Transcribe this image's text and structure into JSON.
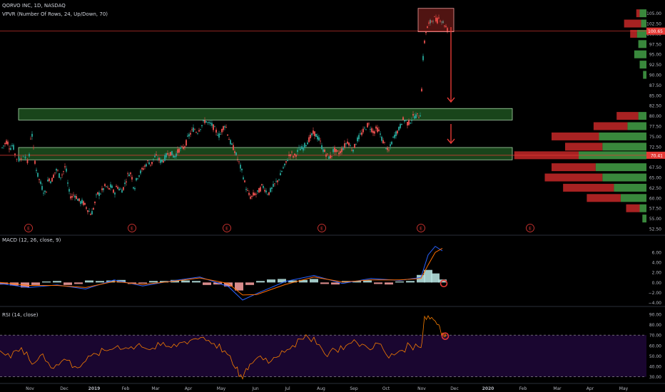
{
  "header": {
    "symbol_line": "QORVO INC, 1D, NASDAQ",
    "vpvr_line": "VPVR (Number Of Rows, 24, Up/Down, 70)"
  },
  "macd_pane": {
    "label": "MACD (12, 26, close, 9)"
  },
  "rsi_pane": {
    "label": "RSI (14, close)"
  },
  "price_badges": {
    "last": "100.65",
    "poc": "70.41"
  },
  "colors": {
    "background": "#000000",
    "candle_up": "#26a69a",
    "candle_down": "#ef5350",
    "zone_fill": "#2e7d32",
    "zone_stroke": "#a5d6a7",
    "vp_up": "#43a047",
    "vp_down": "#c62828",
    "macd_line": "#2962ff",
    "signal_line": "#ff6d00",
    "rsi_line": "#f57c00",
    "rsi_band": "#1a0630",
    "annotation": "#e53935"
  },
  "earnings_marker_label": "E",
  "chart_data": [
    {
      "type": "candlestick",
      "title": "QORVO INC, 1D, NASDAQ",
      "ylim": [
        52.5,
        106.5
      ],
      "y_ticks": [
        "105.00",
        "102.50",
        "100.00",
        "97.50",
        "95.00",
        "92.50",
        "90.00",
        "87.50",
        "85.00",
        "82.50",
        "80.00",
        "77.50",
        "75.00",
        "72.50",
        "70.00",
        "67.50",
        "65.00",
        "62.50",
        "60.00",
        "57.50",
        "55.00",
        "52.50"
      ],
      "x_ticks": [
        "Nov",
        "Dec",
        "2019",
        "Feb",
        "Mar",
        "Apr",
        "May",
        "Jun",
        "Jul",
        "Aug",
        "Sep",
        "Oct",
        "Nov",
        "Dec",
        "2020",
        "Feb",
        "Mar",
        "Apr",
        "May"
      ],
      "close_path": [
        [
          2,
          72
        ],
        [
          6,
          73
        ],
        [
          10,
          74
        ],
        [
          14,
          72
        ],
        [
          18,
          73
        ],
        [
          22,
          70
        ],
        [
          28,
          69
        ],
        [
          34,
          71
        ],
        [
          40,
          68
        ],
        [
          44,
          77
        ],
        [
          48,
          70
        ],
        [
          52,
          66
        ],
        [
          56,
          64
        ],
        [
          60,
          62
        ],
        [
          64,
          61
        ],
        [
          68,
          65
        ],
        [
          72,
          64
        ],
        [
          76,
          66
        ],
        [
          80,
          67
        ],
        [
          84,
          65
        ],
        [
          88,
          66
        ],
        [
          92,
          68
        ],
        [
          96,
          62
        ],
        [
          100,
          60
        ],
        [
          104,
          61
        ],
        [
          108,
          60
        ],
        [
          112,
          59
        ],
        [
          116,
          59
        ],
        [
          120,
          58
        ],
        [
          124,
          57
        ],
        [
          128,
          56
        ],
        [
          132,
          58
        ],
        [
          136,
          61
        ],
        [
          140,
          61
        ],
        [
          144,
          62
        ],
        [
          148,
          63
        ],
        [
          152,
          62
        ],
        [
          156,
          63
        ],
        [
          160,
          61
        ],
        [
          164,
          63
        ],
        [
          168,
          62
        ],
        [
          172,
          62
        ],
        [
          176,
          64
        ],
        [
          180,
          66
        ],
        [
          184,
          66
        ],
        [
          188,
          62
        ],
        [
          192,
          65
        ],
        [
          196,
          66
        ],
        [
          200,
          67
        ],
        [
          204,
          68
        ],
        [
          208,
          69
        ],
        [
          212,
          68
        ],
        [
          216,
          70
        ],
        [
          220,
          70
        ],
        [
          224,
          69
        ],
        [
          228,
          69
        ],
        [
          232,
          70
        ],
        [
          236,
          71
        ],
        [
          240,
          71
        ],
        [
          244,
          70
        ],
        [
          248,
          71
        ],
        [
          252,
          72
        ],
        [
          256,
          72
        ],
        [
          260,
          73
        ],
        [
          264,
          75
        ],
        [
          268,
          76
        ],
        [
          272,
          77
        ],
        [
          276,
          76
        ],
        [
          280,
          77
        ],
        [
          284,
          78
        ],
        [
          288,
          79
        ],
        [
          292,
          78
        ],
        [
          296,
          78
        ],
        [
          300,
          77
        ],
        [
          304,
          76
        ],
        [
          308,
          75
        ],
        [
          312,
          77
        ],
        [
          316,
          78
        ],
        [
          320,
          75
        ],
        [
          324,
          73
        ],
        [
          328,
          72
        ],
        [
          332,
          70
        ],
        [
          336,
          68
        ],
        [
          340,
          66
        ],
        [
          344,
          63
        ],
        [
          348,
          61
        ],
        [
          352,
          60
        ],
        [
          356,
          61
        ],
        [
          360,
          61
        ],
        [
          364,
          62
        ],
        [
          368,
          63
        ],
        [
          372,
          62
        ],
        [
          376,
          61
        ],
        [
          380,
          62
        ],
        [
          384,
          63
        ],
        [
          388,
          64
        ],
        [
          392,
          65
        ],
        [
          396,
          67
        ],
        [
          400,
          68
        ],
        [
          404,
          70
        ],
        [
          408,
          71
        ],
        [
          412,
          70
        ],
        [
          416,
          71
        ],
        [
          420,
          72
        ],
        [
          424,
          72
        ],
        [
          428,
          73
        ],
        [
          432,
          74
        ],
        [
          436,
          75
        ],
        [
          440,
          76
        ],
        [
          444,
          75
        ],
        [
          448,
          74
        ],
        [
          452,
          72
        ],
        [
          456,
          71
        ],
        [
          460,
          70
        ],
        [
          464,
          70
        ],
        [
          468,
          72
        ],
        [
          472,
          71
        ],
        [
          476,
          71
        ],
        [
          480,
          72
        ],
        [
          484,
          73
        ],
        [
          488,
          74
        ],
        [
          492,
          72
        ],
        [
          496,
          72
        ],
        [
          500,
          74
        ],
        [
          504,
          75
        ],
        [
          508,
          76
        ],
        [
          512,
          77
        ],
        [
          516,
          78
        ],
        [
          520,
          77
        ],
        [
          524,
          76
        ],
        [
          528,
          77
        ],
        [
          532,
          76
        ],
        [
          536,
          74
        ],
        [
          540,
          73
        ],
        [
          544,
          71
        ],
        [
          548,
          73
        ],
        [
          552,
          75
        ],
        [
          556,
          76
        ],
        [
          560,
          77
        ],
        [
          564,
          79
        ],
        [
          568,
          79
        ],
        [
          572,
          78
        ],
        [
          576,
          79
        ],
        [
          580,
          80
        ],
        [
          584,
          80
        ],
        [
          588,
          80
        ],
        [
          590,
          81
        ],
        [
          592,
          92
        ],
        [
          594,
          96
        ],
        [
          596,
          100
        ],
        [
          600,
          102
        ],
        [
          604,
          103
        ],
        [
          608,
          104
        ],
        [
          612,
          103
        ],
        [
          616,
          104
        ],
        [
          620,
          103
        ],
        [
          624,
          102
        ],
        [
          628,
          100.65
        ]
      ],
      "zones": [
        {
          "name": "resistance-zone",
          "from_price": 79.0,
          "to_price": 81.8
        },
        {
          "name": "support-zone",
          "from_price": 69.3,
          "to_price": 72.3
        }
      ],
      "highlight_box": {
        "from_price": 100.5,
        "to_price": 106.2
      },
      "horizontal_lines": [
        {
          "name": "last-price",
          "price": 100.65
        },
        {
          "name": "poc-line",
          "price": 70.41
        }
      ],
      "volume_profile": [
        {
          "price": 105.0,
          "up": 10,
          "down": 5
        },
        {
          "price": 102.5,
          "up": 8,
          "down": 25
        },
        {
          "price": 100.0,
          "up": 14,
          "down": 10
        },
        {
          "price": 97.5,
          "up": 12,
          "down": 0
        },
        {
          "price": 95.0,
          "up": 18,
          "down": 0
        },
        {
          "price": 92.5,
          "up": 10,
          "down": 0
        },
        {
          "price": 90.0,
          "up": 5,
          "down": 0
        },
        {
          "price": 80.0,
          "up": 12,
          "down": 32
        },
        {
          "price": 77.5,
          "up": 28,
          "down": 50
        },
        {
          "price": 75.0,
          "up": 70,
          "down": 70
        },
        {
          "price": 72.5,
          "up": 65,
          "down": 55
        },
        {
          "price": 70.41,
          "up": 100,
          "down": 95
        },
        {
          "price": 67.5,
          "up": 75,
          "down": 65
        },
        {
          "price": 65.0,
          "up": 65,
          "down": 85
        },
        {
          "price": 62.5,
          "up": 48,
          "down": 75
        },
        {
          "price": 60.0,
          "up": 38,
          "down": 50
        },
        {
          "price": 57.5,
          "up": 10,
          "down": 20
        },
        {
          "price": 55.0,
          "up": 6,
          "down": 0
        }
      ]
    },
    {
      "type": "line",
      "title": "MACD (12, 26, close, 9)",
      "ylim": [
        -4.5,
        8.0
      ],
      "y_ticks": [
        "6.00",
        "4.00",
        "2.00",
        "0.00",
        "−2.00",
        "−4.00"
      ],
      "series": [
        {
          "name": "macd",
          "x": [
            0,
            40,
            80,
            120,
            160,
            200,
            240,
            280,
            320,
            340,
            360,
            400,
            440,
            480,
            520,
            560,
            590,
            600,
            610,
            620
          ],
          "values": [
            -0.2,
            -1.0,
            -0.5,
            -1.3,
            0.5,
            -0.7,
            0.3,
            1.1,
            -0.8,
            -3.5,
            -2.2,
            0.2,
            1.4,
            -0.2,
            0.8,
            0.4,
            1.0,
            5.5,
            7.2,
            6.3
          ]
        },
        {
          "name": "signal",
          "x": [
            0,
            40,
            80,
            120,
            160,
            200,
            240,
            280,
            320,
            340,
            360,
            400,
            440,
            480,
            520,
            560,
            590,
            600,
            610,
            620
          ],
          "values": [
            0.0,
            -0.6,
            -0.6,
            -1.0,
            0.2,
            -0.4,
            0.2,
            0.9,
            -0.2,
            -2.5,
            -2.4,
            -0.4,
            1.1,
            0.1,
            0.5,
            0.5,
            0.8,
            3.5,
            6.0,
            6.8
          ]
        }
      ],
      "histogram": {
        "x": [
          5,
          20,
          35,
          50,
          65,
          80,
          95,
          110,
          125,
          140,
          155,
          170,
          185,
          200,
          215,
          230,
          245,
          260,
          275,
          290,
          305,
          320,
          335,
          350,
          365,
          380,
          395,
          410,
          425,
          440,
          455,
          470,
          485,
          500,
          515,
          530,
          545,
          560,
          575,
          590,
          600,
          610,
          620
        ],
        "values": [
          -0.4,
          -0.6,
          -1.0,
          -0.5,
          0.2,
          0.3,
          -0.5,
          -0.3,
          0.4,
          0.3,
          0.4,
          0.5,
          -0.3,
          -0.2,
          0.3,
          0.3,
          0.5,
          0.4,
          0.3,
          -0.5,
          -0.4,
          -0.8,
          -1.6,
          -0.5,
          0.3,
          0.6,
          0.7,
          0.4,
          0.5,
          0.7,
          -0.3,
          -0.4,
          0.3,
          0.3,
          0.4,
          -0.3,
          -0.4,
          0.2,
          0.3,
          1.5,
          2.5,
          1.8,
          0.6
        ]
      },
      "marked_point": {
        "x": 622,
        "value": -0.2
      }
    },
    {
      "type": "line",
      "title": "RSI (14, close)",
      "ylim": [
        25,
        92
      ],
      "y_ticks": [
        "90.00",
        "80.00",
        "70.00",
        "60.00",
        "50.00",
        "40.00",
        "30.00"
      ],
      "bands": [
        70,
        30
      ],
      "series": [
        {
          "name": "rsi",
          "x": [
            0,
            15,
            30,
            45,
            60,
            75,
            90,
            105,
            120,
            135,
            150,
            165,
            180,
            195,
            210,
            225,
            240,
            255,
            270,
            285,
            300,
            315,
            330,
            340,
            350,
            365,
            380,
            395,
            410,
            425,
            440,
            455,
            470,
            485,
            500,
            515,
            530,
            545,
            560,
            575,
            590,
            595,
            605,
            615,
            620,
            625
          ],
          "values": [
            55,
            48,
            58,
            42,
            52,
            38,
            47,
            40,
            45,
            52,
            55,
            60,
            57,
            62,
            56,
            60,
            58,
            63,
            66,
            68,
            62,
            55,
            38,
            28,
            42,
            50,
            45,
            55,
            60,
            66,
            68,
            52,
            56,
            60,
            63,
            58,
            62,
            48,
            55,
            60,
            58,
            88,
            87,
            80,
            72,
            68
          ]
        }
      ],
      "marked_point": {
        "x": 624,
        "value": 69
      }
    }
  ]
}
